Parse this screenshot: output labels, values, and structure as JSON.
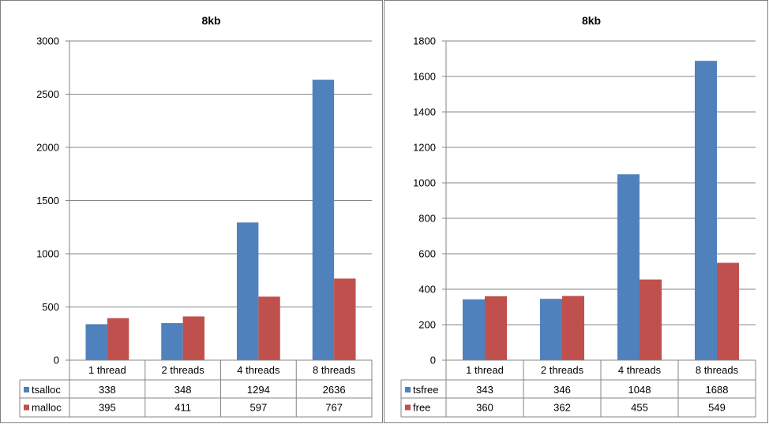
{
  "chart_data": [
    {
      "type": "bar",
      "title": "8kb",
      "categories": [
        "1 thread",
        "2 threads",
        "4 threads",
        "8 threads"
      ],
      "series": [
        {
          "name": "tsalloc",
          "color": "#4f81bd",
          "values": [
            338,
            348,
            1294,
            2636
          ]
        },
        {
          "name": "malloc",
          "color": "#c0504d",
          "values": [
            395,
            411,
            597,
            767
          ]
        }
      ],
      "ylim": [
        0,
        3000
      ],
      "yticks": [
        0,
        500,
        1000,
        1500,
        2000,
        2500,
        3000
      ],
      "grid": true,
      "legend": "data-table"
    },
    {
      "type": "bar",
      "title": "8kb",
      "categories": [
        "1 thread",
        "2 threads",
        "4 threads",
        "8 threads"
      ],
      "series": [
        {
          "name": "tsfree",
          "color": "#4f81bd",
          "values": [
            343,
            346,
            1048,
            1688
          ]
        },
        {
          "name": "free",
          "color": "#c0504d",
          "values": [
            360,
            362,
            455,
            549
          ]
        }
      ],
      "ylim": [
        0,
        1800
      ],
      "yticks": [
        0,
        200,
        400,
        600,
        800,
        1000,
        1200,
        1400,
        1600,
        1800
      ],
      "grid": true,
      "legend": "data-table"
    }
  ]
}
